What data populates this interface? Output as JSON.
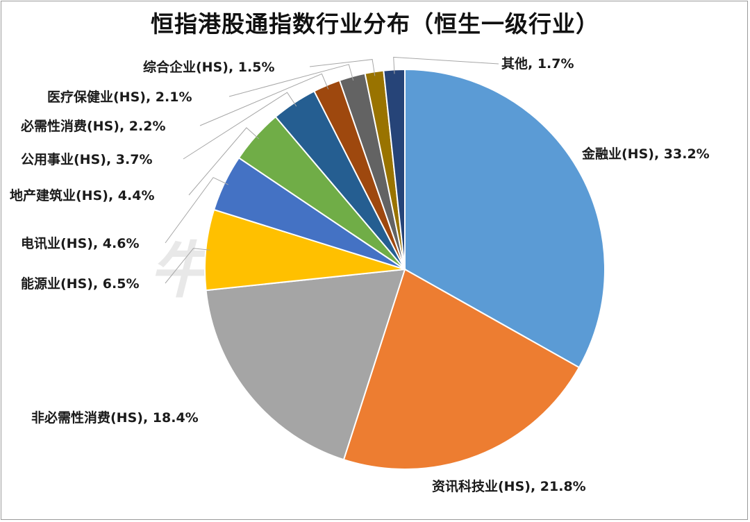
{
  "title": "恒指港股通指数行业分布（恒生一级行业）",
  "watermark": "牛基投资社",
  "chart_data": {
    "type": "pie",
    "title": "恒指港股通指数行业分布（恒生一级行业）",
    "slices": [
      {
        "name": "金融业(HS)",
        "value": 33.2,
        "color": "#5b9bd5",
        "label": "金融业(HS), 33.2%"
      },
      {
        "name": "资讯科技业(HS)",
        "value": 21.8,
        "color": "#ed7d31",
        "label": "资讯科技业(HS), 21.8%"
      },
      {
        "name": "非必需性消费(HS)",
        "value": 18.4,
        "color": "#a5a5a5",
        "label": "非必需性消费(HS), 18.4%"
      },
      {
        "name": "能源业(HS)",
        "value": 6.5,
        "color": "#ffc000",
        "label": "能源业(HS), 6.5%"
      },
      {
        "name": "电讯业(HS)",
        "value": 4.6,
        "color": "#4472c4",
        "label": "电讯业(HS), 4.6%"
      },
      {
        "name": "地产建筑业(HS)",
        "value": 4.4,
        "color": "#70ad47",
        "label": "地产建筑业(HS), 4.4%"
      },
      {
        "name": "公用事业(HS)",
        "value": 3.7,
        "color": "#255e91",
        "label": "公用事业(HS), 3.7%"
      },
      {
        "name": "必需性消费(HS)",
        "value": 2.2,
        "color": "#9e480e",
        "label": "必需性消费(HS), 2.2%"
      },
      {
        "name": "医疗保健业(HS)",
        "value": 2.1,
        "color": "#636363",
        "label": "医疗保健业(HS), 2.1%"
      },
      {
        "name": "综合企业(HS)",
        "value": 1.5,
        "color": "#997300",
        "label": "综合企业(HS), 1.5%"
      },
      {
        "name": "其他",
        "value": 1.7,
        "color": "#264478",
        "label": "其他, 1.7%"
      }
    ]
  }
}
